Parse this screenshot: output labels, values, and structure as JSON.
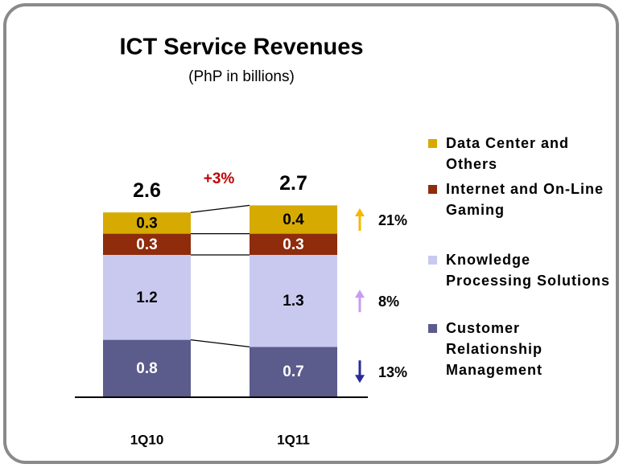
{
  "chart_data": {
    "type": "bar",
    "stacked": true,
    "title": "ICT Service Revenues",
    "subtitle": "(PhP in billions)",
    "categories": [
      "1Q10",
      "1Q11"
    ],
    "totals": [
      2.6,
      2.7
    ],
    "total_change": "+3%",
    "series": [
      {
        "name": "Customer Relationship Management",
        "color": "#5b5b8c",
        "label_color": "#ffffff",
        "values": [
          0.8,
          0.7
        ],
        "change": "13%",
        "change_direction": "down",
        "change_color": "#2a2a9a"
      },
      {
        "name": "Knowledge Processing Solutions",
        "color": "#c9c9f0",
        "label_color": "#000000",
        "values": [
          1.2,
          1.3
        ],
        "change": "8%",
        "change_direction": "up",
        "change_color": "#c89cf0"
      },
      {
        "name": "Internet and On-Line Gaming",
        "color": "#8e2c0c",
        "label_color": "#ffffff",
        "values": [
          0.3,
          0.3
        ]
      },
      {
        "name": "Data Center and Others",
        "color": "#d6aa00",
        "label_color": "#000000",
        "values": [
          0.3,
          0.4
        ],
        "change": "21%",
        "change_direction": "up",
        "change_color": "#f5b800"
      }
    ]
  }
}
